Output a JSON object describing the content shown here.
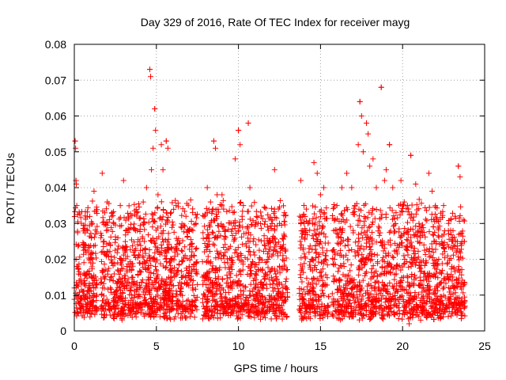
{
  "chart_data": {
    "type": "scatter",
    "title": "Day 329 of 2016, Rate Of TEC Index for receiver mayg",
    "xlabel": "GPS time / hours",
    "ylabel": "ROTI / TECUs",
    "xlim": [
      0,
      25
    ],
    "ylim": [
      0,
      0.08
    ],
    "xticks": [
      0,
      5,
      10,
      15,
      20,
      25
    ],
    "xtick_labels": [
      "0",
      "5",
      "10",
      "15",
      "20",
      "25"
    ],
    "yticks": [
      0,
      0.01,
      0.02,
      0.03,
      0.04,
      0.05,
      0.06,
      0.07,
      0.08
    ],
    "ytick_labels": [
      "0",
      "0.01",
      "0.02",
      "0.03",
      "0.04",
      "0.05",
      "0.06",
      "0.07",
      "0.08"
    ],
    "grid": true,
    "marker": "plus",
    "color": "#ff0000",
    "data_gaps_hours": [
      [
        1.4,
        1.6
      ],
      [
        7.5,
        7.8
      ],
      [
        13.0,
        13.7
      ],
      [
        15.5,
        15.7
      ]
    ],
    "notable_peaks": [
      {
        "x": 0.05,
        "y": 0.053
      },
      {
        "x": 0.1,
        "y": 0.042
      },
      {
        "x": 4.6,
        "y": 0.073
      },
      {
        "x": 4.9,
        "y": 0.062
      },
      {
        "x": 5.6,
        "y": 0.053
      },
      {
        "x": 8.5,
        "y": 0.053
      },
      {
        "x": 10.0,
        "y": 0.056
      },
      {
        "x": 10.6,
        "y": 0.058
      },
      {
        "x": 17.4,
        "y": 0.064
      },
      {
        "x": 17.8,
        "y": 0.058
      },
      {
        "x": 18.7,
        "y": 0.068
      },
      {
        "x": 19.2,
        "y": 0.052
      },
      {
        "x": 20.5,
        "y": 0.049
      },
      {
        "x": 23.4,
        "y": 0.046
      }
    ],
    "typical_range": [
      0.005,
      0.035
    ],
    "series": [
      {
        "values": [
          [
            0.0,
            0.012
          ],
          [
            0.05,
            0.053
          ],
          [
            0.08,
            0.051
          ],
          [
            0.1,
            0.042
          ],
          [
            0.12,
            0.041
          ],
          [
            0.15,
            0.035
          ],
          [
            0.2,
            0.018
          ],
          [
            0.3,
            0.014
          ],
          [
            0.4,
            0.009
          ],
          [
            0.5,
            0.011
          ],
          [
            0.6,
            0.013
          ],
          [
            0.7,
            0.024
          ],
          [
            0.8,
            0.028
          ],
          [
            0.9,
            0.016
          ],
          [
            1.0,
            0.019
          ],
          [
            1.1,
            0.03
          ],
          [
            1.2,
            0.039
          ],
          [
            1.3,
            0.012
          ],
          [
            1.7,
            0.044
          ],
          [
            1.8,
            0.015
          ],
          [
            2.0,
            0.036
          ],
          [
            2.2,
            0.012
          ],
          [
            2.4,
            0.03
          ],
          [
            2.6,
            0.01
          ],
          [
            2.8,
            0.035
          ],
          [
            3.0,
            0.042
          ],
          [
            3.2,
            0.018
          ],
          [
            3.5,
            0.01
          ],
          [
            3.8,
            0.033
          ],
          [
            4.0,
            0.012
          ],
          [
            4.2,
            0.036
          ],
          [
            4.4,
            0.04
          ],
          [
            4.6,
            0.073
          ],
          [
            4.65,
            0.071
          ],
          [
            4.7,
            0.045
          ],
          [
            4.8,
            0.051
          ],
          [
            4.9,
            0.062
          ],
          [
            4.95,
            0.056
          ],
          [
            5.1,
            0.038
          ],
          [
            5.3,
            0.052
          ],
          [
            5.4,
            0.045
          ],
          [
            5.6,
            0.053
          ],
          [
            5.7,
            0.051
          ],
          [
            5.9,
            0.033
          ],
          [
            6.2,
            0.035
          ],
          [
            6.5,
            0.029
          ],
          [
            6.8,
            0.032
          ],
          [
            7.0,
            0.018
          ],
          [
            7.2,
            0.012
          ],
          [
            7.4,
            0.03
          ],
          [
            7.9,
            0.032
          ],
          [
            8.1,
            0.04
          ],
          [
            8.3,
            0.036
          ],
          [
            8.5,
            0.053
          ],
          [
            8.6,
            0.051
          ],
          [
            8.7,
            0.038
          ],
          [
            9.0,
            0.038
          ],
          [
            9.2,
            0.028
          ],
          [
            9.5,
            0.012
          ],
          [
            9.8,
            0.048
          ],
          [
            10.0,
            0.056
          ],
          [
            10.1,
            0.052
          ],
          [
            10.3,
            0.035
          ],
          [
            10.6,
            0.058
          ],
          [
            10.7,
            0.04
          ],
          [
            10.9,
            0.025
          ],
          [
            11.2,
            0.03
          ],
          [
            11.5,
            0.012
          ],
          [
            11.8,
            0.02
          ],
          [
            12.0,
            0.031
          ],
          [
            12.2,
            0.045
          ],
          [
            12.5,
            0.03
          ],
          [
            12.8,
            0.033
          ],
          [
            13.8,
            0.042
          ],
          [
            14.0,
            0.03
          ],
          [
            14.3,
            0.022
          ],
          [
            14.6,
            0.047
          ],
          [
            14.8,
            0.044
          ],
          [
            15.0,
            0.038
          ],
          [
            15.2,
            0.04
          ],
          [
            15.3,
            0.02
          ],
          [
            15.8,
            0.028
          ],
          [
            16.0,
            0.035
          ],
          [
            16.3,
            0.04
          ],
          [
            16.6,
            0.044
          ],
          [
            16.9,
            0.04
          ],
          [
            17.1,
            0.035
          ],
          [
            17.3,
            0.052
          ],
          [
            17.4,
            0.064
          ],
          [
            17.5,
            0.06
          ],
          [
            17.6,
            0.05
          ],
          [
            17.8,
            0.058
          ],
          [
            17.9,
            0.055
          ],
          [
            18.0,
            0.046
          ],
          [
            18.2,
            0.048
          ],
          [
            18.4,
            0.04
          ],
          [
            18.7,
            0.068
          ],
          [
            18.9,
            0.042
          ],
          [
            19.0,
            0.045
          ],
          [
            19.2,
            0.052
          ],
          [
            19.4,
            0.04
          ],
          [
            19.6,
            0.033
          ],
          [
            19.9,
            0.042
          ],
          [
            20.1,
            0.036
          ],
          [
            20.3,
            0.035
          ],
          [
            20.5,
            0.049
          ],
          [
            20.8,
            0.041
          ],
          [
            21.0,
            0.03
          ],
          [
            21.3,
            0.024
          ],
          [
            21.6,
            0.044
          ],
          [
            21.8,
            0.039
          ],
          [
            22.0,
            0.035
          ],
          [
            22.2,
            0.02
          ],
          [
            22.5,
            0.035
          ],
          [
            22.8,
            0.03
          ],
          [
            23.0,
            0.025
          ],
          [
            23.2,
            0.032
          ],
          [
            23.4,
            0.046
          ],
          [
            23.5,
            0.043
          ],
          [
            23.7,
            0.031
          ],
          [
            20.4,
            0.002
          ],
          [
            21.1,
            0.003
          ],
          [
            22.3,
            0.004
          ],
          [
            23.6,
            0.005
          ],
          [
            8.0,
            0.004
          ],
          [
            17.0,
            0.004
          ]
        ]
      }
    ]
  }
}
